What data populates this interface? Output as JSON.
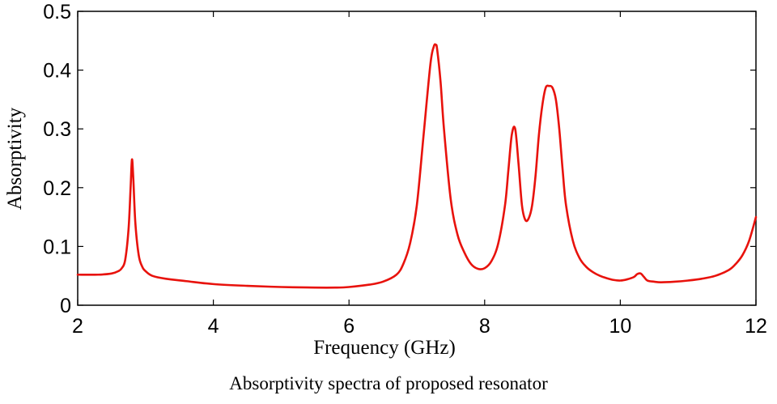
{
  "chart_data": {
    "type": "line",
    "xlabel": "Frequency (GHz)",
    "ylabel": "Absorptivity",
    "caption": "Absorptivity spectra of proposed resonator",
    "xlim": [
      2,
      12
    ],
    "ylim": [
      0,
      0.5
    ],
    "xticks": [
      2,
      4,
      6,
      8,
      10,
      12
    ],
    "yticks": [
      0,
      0.1,
      0.2,
      0.3,
      0.4,
      0.5
    ],
    "xtick_labels": [
      "2",
      "4",
      "6",
      "8",
      "10",
      "12"
    ],
    "ytick_labels": [
      "0",
      "0.1",
      "0.2",
      "0.3",
      "0.4",
      "0.5"
    ],
    "grid": false,
    "series": [
      {
        "color": "#e8120c",
        "x": [
          2.0,
          2.3,
          2.5,
          2.6,
          2.65,
          2.7,
          2.75,
          2.78,
          2.8,
          2.82,
          2.85,
          2.9,
          2.95,
          3.0,
          3.1,
          3.3,
          3.6,
          4.0,
          4.5,
          5.0,
          5.5,
          5.8,
          6.0,
          6.3,
          6.5,
          6.7,
          6.8,
          6.9,
          7.0,
          7.1,
          7.2,
          7.25,
          7.28,
          7.3,
          7.35,
          7.4,
          7.5,
          7.6,
          7.7,
          7.8,
          7.9,
          8.0,
          8.1,
          8.2,
          8.3,
          8.35,
          8.4,
          8.45,
          8.5,
          8.55,
          8.6,
          8.65,
          8.7,
          8.75,
          8.8,
          8.85,
          8.9,
          8.95,
          9.0,
          9.05,
          9.1,
          9.15,
          9.2,
          9.3,
          9.4,
          9.5,
          9.6,
          9.7,
          9.8,
          9.9,
          10.0,
          10.1,
          10.2,
          10.25,
          10.3,
          10.35,
          10.4,
          10.5,
          10.6,
          10.8,
          11.0,
          11.2,
          11.4,
          11.6,
          11.7,
          11.8,
          11.9,
          12.0
        ],
        "y": [
          0.052,
          0.052,
          0.054,
          0.058,
          0.063,
          0.077,
          0.13,
          0.2,
          0.248,
          0.215,
          0.14,
          0.085,
          0.066,
          0.058,
          0.05,
          0.045,
          0.041,
          0.036,
          0.033,
          0.031,
          0.03,
          0.03,
          0.031,
          0.035,
          0.04,
          0.052,
          0.07,
          0.105,
          0.17,
          0.29,
          0.41,
          0.44,
          0.443,
          0.435,
          0.38,
          0.3,
          0.18,
          0.12,
          0.09,
          0.07,
          0.062,
          0.063,
          0.075,
          0.105,
          0.17,
          0.23,
          0.29,
          0.3,
          0.24,
          0.17,
          0.145,
          0.148,
          0.17,
          0.22,
          0.29,
          0.34,
          0.37,
          0.373,
          0.37,
          0.35,
          0.3,
          0.23,
          0.17,
          0.11,
          0.08,
          0.065,
          0.056,
          0.05,
          0.046,
          0.043,
          0.042,
          0.044,
          0.048,
          0.053,
          0.054,
          0.048,
          0.042,
          0.04,
          0.039,
          0.04,
          0.042,
          0.045,
          0.05,
          0.06,
          0.07,
          0.085,
          0.11,
          0.15
        ]
      }
    ]
  }
}
